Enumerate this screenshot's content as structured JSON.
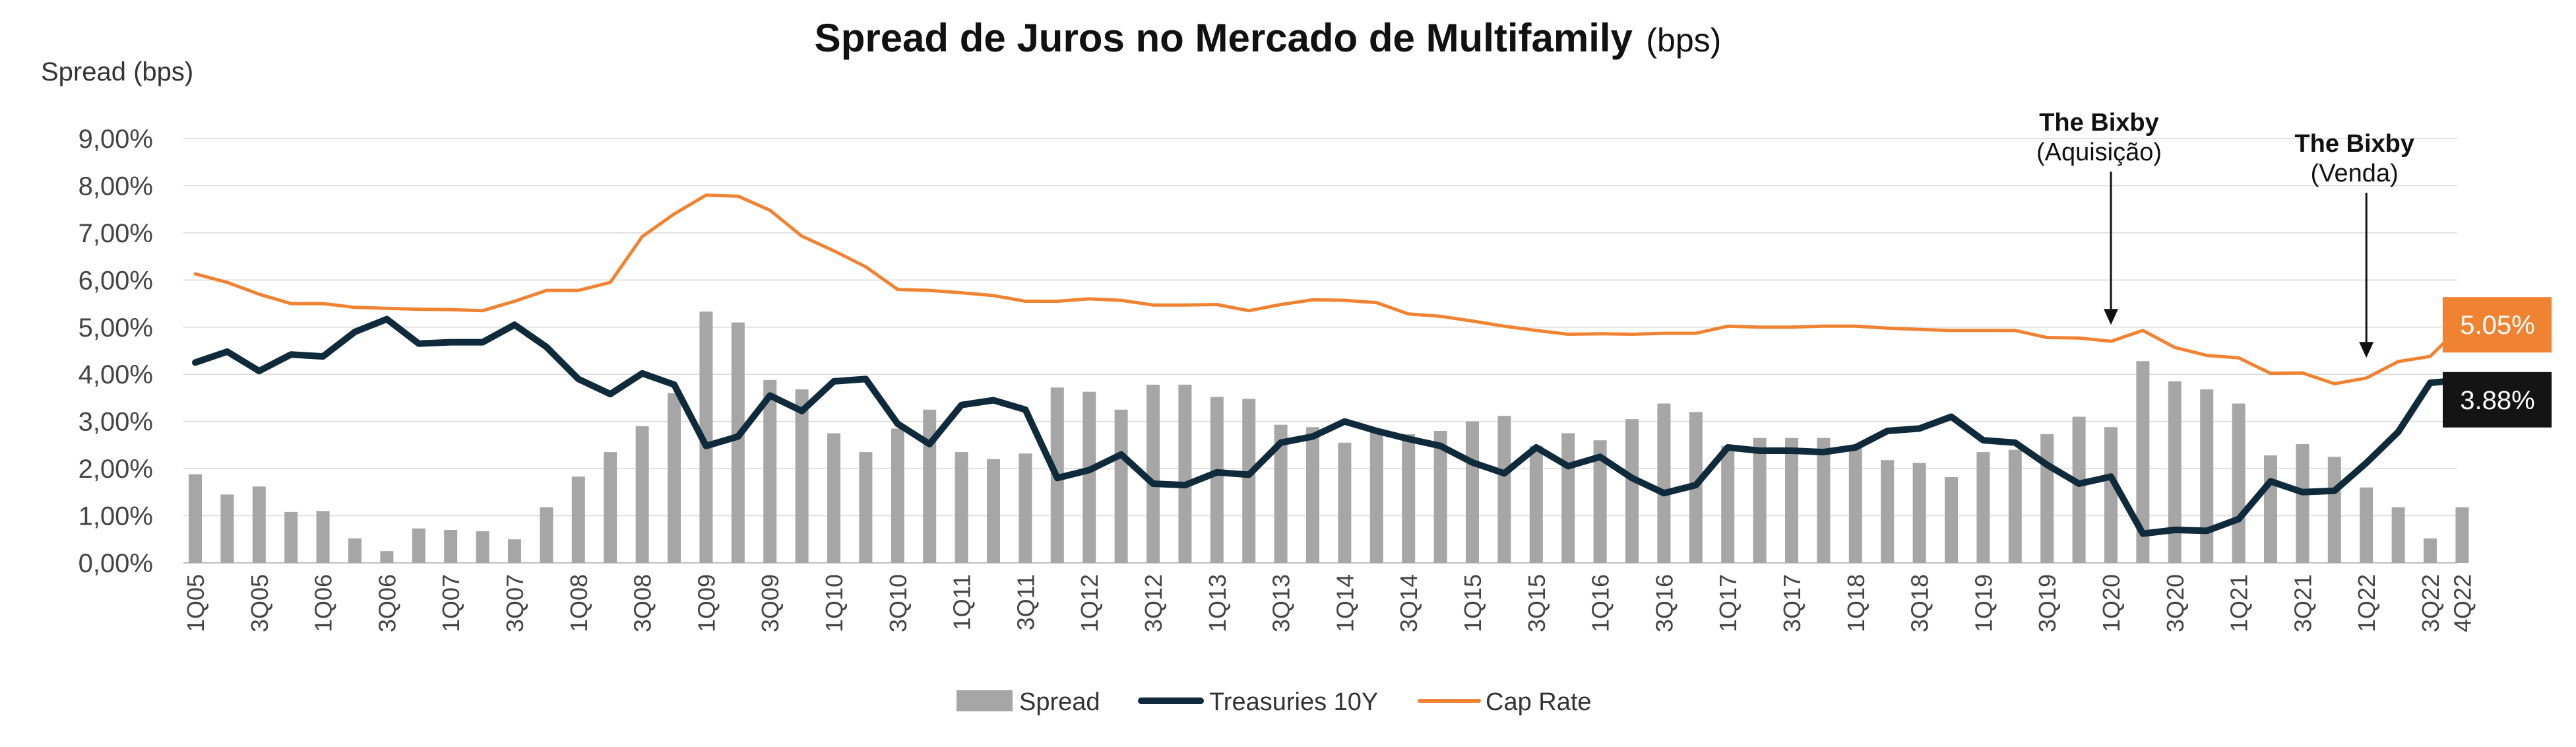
{
  "chart_data": {
    "type": "bar+line",
    "title": "Spread de Juros no Mercado de Multifamily",
    "title_suffix": "(bps)",
    "ylabel": "Spread (bps)",
    "ylim": [
      0,
      9
    ],
    "yticks": [
      0,
      1,
      2,
      3,
      4,
      5,
      6,
      7,
      8,
      9
    ],
    "ytick_labels": [
      "0,00%",
      "1,00%",
      "2,00%",
      "3,00%",
      "4,00%",
      "5,00%",
      "6,00%",
      "7,00%",
      "8,00%",
      "9,00%"
    ],
    "categories": [
      "1Q05",
      "2Q05",
      "3Q05",
      "4Q05",
      "1Q06",
      "2Q06",
      "3Q06",
      "4Q06",
      "1Q07",
      "2Q07",
      "3Q07",
      "4Q07",
      "1Q08",
      "2Q08",
      "3Q08",
      "4Q08",
      "1Q09",
      "2Q09",
      "3Q09",
      "4Q09",
      "1Q10",
      "2Q10",
      "3Q10",
      "4Q10",
      "1Q11",
      "2Q11",
      "3Q11",
      "4Q11",
      "1Q12",
      "2Q12",
      "3Q12",
      "4Q12",
      "1Q13",
      "2Q13",
      "3Q13",
      "4Q13",
      "1Q14",
      "2Q14",
      "3Q14",
      "4Q14",
      "1Q15",
      "2Q15",
      "3Q15",
      "4Q15",
      "1Q16",
      "2Q16",
      "3Q16",
      "4Q16",
      "1Q17",
      "2Q17",
      "3Q17",
      "4Q17",
      "1Q18",
      "2Q18",
      "3Q18",
      "4Q18",
      "1Q19",
      "2Q19",
      "3Q19",
      "4Q19",
      "1Q20",
      "2Q20",
      "3Q20",
      "4Q20",
      "1Q21",
      "2Q21",
      "3Q21",
      "4Q21",
      "1Q22",
      "2Q22",
      "3Q22",
      "4Q22"
    ],
    "x_tick_labels": [
      "1Q05",
      "3Q05",
      "1Q06",
      "3Q06",
      "1Q07",
      "3Q07",
      "1Q08",
      "3Q08",
      "1Q09",
      "3Q09",
      "1Q10",
      "3Q10",
      "1Q11",
      "3Q11",
      "1Q12",
      "3Q12",
      "1Q13",
      "3Q13",
      "1Q14",
      "3Q14",
      "1Q15",
      "3Q15",
      "1Q16",
      "3Q16",
      "1Q17",
      "3Q17",
      "1Q18",
      "3Q18",
      "1Q19",
      "3Q19",
      "1Q20",
      "3Q20",
      "1Q21",
      "3Q21",
      "1Q22",
      "3Q22",
      "4Q22"
    ],
    "series": [
      {
        "name": "Spread",
        "kind": "bar",
        "color": "#a6a6a6",
        "values": [
          1.88,
          1.45,
          1.62,
          1.08,
          1.1,
          0.52,
          0.25,
          0.73,
          0.7,
          0.67,
          0.5,
          1.18,
          1.83,
          2.35,
          2.9,
          3.6,
          5.33,
          5.1,
          3.88,
          3.68,
          2.75,
          2.35,
          2.85,
          3.25,
          2.35,
          2.2,
          2.32,
          3.72,
          3.63,
          3.25,
          3.78,
          3.78,
          3.52,
          3.48,
          2.93,
          2.88,
          2.55,
          2.8,
          2.73,
          2.8,
          3.0,
          3.12,
          2.48,
          2.75,
          2.6,
          3.05,
          3.38,
          3.2,
          2.48,
          2.65,
          2.65,
          2.65,
          2.47,
          2.18,
          2.12,
          1.82,
          2.35,
          2.4,
          2.73,
          3.1,
          2.88,
          4.28,
          3.85,
          3.68,
          3.38,
          2.28,
          2.52,
          2.25,
          1.6,
          1.18,
          0.52,
          1.18
        ]
      },
      {
        "name": "Treasuries 10Y",
        "kind": "line",
        "color": "#0f2a3a",
        "values": [
          4.25,
          4.48,
          4.07,
          4.42,
          4.38,
          4.9,
          5.17,
          4.65,
          4.68,
          4.68,
          5.05,
          4.58,
          3.9,
          3.58,
          4.02,
          3.78,
          2.48,
          2.68,
          3.55,
          3.22,
          3.85,
          3.9,
          2.95,
          2.52,
          3.35,
          3.45,
          3.25,
          1.8,
          1.97,
          2.3,
          1.68,
          1.65,
          1.92,
          1.87,
          2.55,
          2.68,
          3.0,
          2.8,
          2.63,
          2.48,
          2.13,
          1.9,
          2.45,
          2.05,
          2.25,
          1.8,
          1.48,
          1.65,
          2.45,
          2.38,
          2.38,
          2.35,
          2.45,
          2.8,
          2.85,
          3.1,
          2.6,
          2.55,
          2.08,
          1.68,
          1.83,
          0.62,
          0.7,
          0.68,
          0.93,
          1.73,
          1.5,
          1.53,
          2.12,
          2.78,
          3.82,
          3.88
        ]
      },
      {
        "name": "Cap Rate",
        "kind": "line",
        "color": "#f08332",
        "values": [
          6.13,
          5.95,
          5.7,
          5.5,
          5.5,
          5.42,
          5.4,
          5.38,
          5.37,
          5.35,
          5.55,
          5.78,
          5.78,
          5.95,
          6.92,
          7.4,
          7.8,
          7.78,
          7.48,
          6.93,
          6.62,
          6.28,
          5.8,
          5.78,
          5.73,
          5.67,
          5.55,
          5.55,
          5.6,
          5.57,
          5.47,
          5.47,
          5.48,
          5.35,
          5.48,
          5.58,
          5.57,
          5.52,
          5.28,
          5.23,
          5.13,
          5.02,
          4.93,
          4.85,
          4.86,
          4.85,
          4.87,
          4.87,
          5.02,
          5.0,
          5.0,
          5.02,
          5.02,
          4.98,
          4.95,
          4.93,
          4.93,
          4.93,
          4.78,
          4.77,
          4.7,
          4.93,
          4.57,
          4.4,
          4.35,
          4.02,
          4.03,
          3.8,
          3.92,
          4.27,
          4.38,
          5.05
        ]
      }
    ],
    "end_labels": [
      {
        "series": "Cap Rate",
        "text": "5.05%",
        "color": "#f08332"
      },
      {
        "series": "Treasuries 10Y",
        "text": "3.88%",
        "color": "#141414"
      }
    ],
    "annotations": [
      {
        "title": "The Bixby",
        "subtitle": "(Aquisição)",
        "category": "1Q20",
        "arrow_to": 5.05
      },
      {
        "title": "The Bixby",
        "subtitle": "(Venda)",
        "category": "1Q22",
        "arrow_to": 4.35
      }
    ],
    "legend": {
      "position": "bottom-center",
      "items": [
        "Spread",
        "Treasuries 10Y",
        "Cap Rate"
      ]
    },
    "grid": true
  }
}
